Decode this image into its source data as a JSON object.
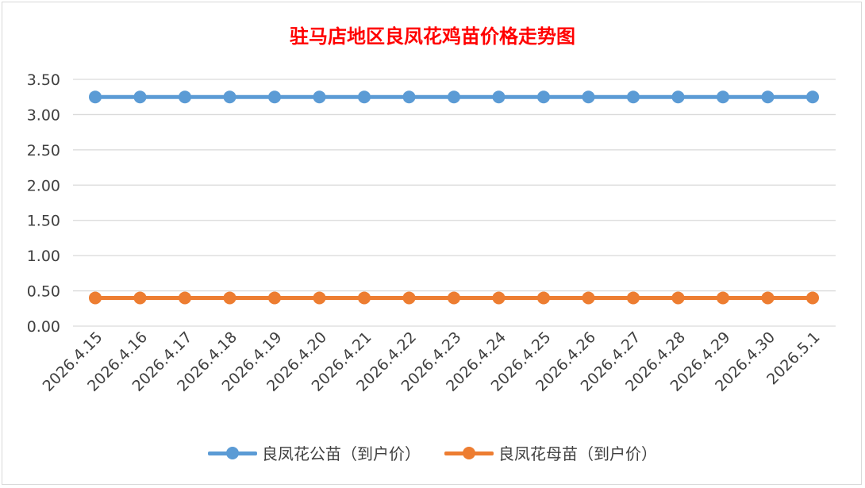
{
  "chart_data": {
    "type": "line",
    "title": "驻马店地区良凤花鸡苗价格走势图",
    "xlabel": "",
    "ylabel": "",
    "categories": [
      "2026.4.15",
      "2026.4.16",
      "2026.4.17",
      "2026.4.18",
      "2026.4.19",
      "2026.4.20",
      "2026.4.21",
      "2026.4.22",
      "2026.4.23",
      "2026.4.24",
      "2026.4.25",
      "2026.4.26",
      "2026.4.27",
      "2026.4.28",
      "2026.4.29",
      "2026.4.30",
      "2026.5.1"
    ],
    "ylim": [
      0,
      3.5
    ],
    "yticks": [
      "0.00",
      "0.50",
      "1.00",
      "1.50",
      "2.00",
      "2.50",
      "3.00",
      "3.50"
    ],
    "grid": true,
    "legend_position": "bottom",
    "series": [
      {
        "name": "良凤花公苗（到户价）",
        "color": "#5b9bd5",
        "values": [
          3.25,
          3.25,
          3.25,
          3.25,
          3.25,
          3.25,
          3.25,
          3.25,
          3.25,
          3.25,
          3.25,
          3.25,
          3.25,
          3.25,
          3.25,
          3.25,
          3.25
        ]
      },
      {
        "name": "良凤花母苗（到户价）",
        "color": "#ed7d31",
        "values": [
          0.4,
          0.4,
          0.4,
          0.4,
          0.4,
          0.4,
          0.4,
          0.4,
          0.4,
          0.4,
          0.4,
          0.4,
          0.4,
          0.4,
          0.4,
          0.4,
          0.4
        ]
      }
    ]
  }
}
